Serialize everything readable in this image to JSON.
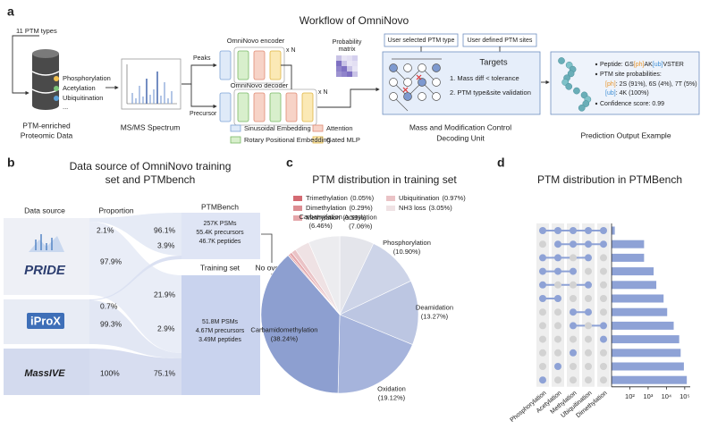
{
  "panel_labels": [
    "a",
    "b",
    "c",
    "d"
  ],
  "panel_a": {
    "title": "Workflow of OmniNovo",
    "ptm_types": "11 PTM types",
    "ptm_list": [
      "Phosphorylation",
      "Acetylation",
      "Ubiquitination",
      "..."
    ],
    "data_label": [
      "PTM-enriched",
      "Proteomic Data"
    ],
    "spectrum_label": "MS/MS Spectrum",
    "peaks": "Peaks",
    "precursor": "Precursor",
    "encoder": "OmniNovo encoder",
    "decoder": "OmniNovo decoder",
    "repeat": "x N",
    "probability_matrix": [
      "Probability",
      "matrix"
    ],
    "legend": [
      "Sinusoidal Embedding",
      "Attention",
      "Rotary Positional Embedding",
      "Gated MLP"
    ],
    "user_inputs": [
      "User selected PTM type",
      "User defined PTM sites"
    ],
    "targets": "Targets",
    "target_rules": [
      "1. Mass diff < tolerance",
      "2. PTM type&site validation"
    ],
    "unit_label": [
      "Mass and Modification Control",
      "Decoding Unit"
    ],
    "output": {
      "peptide": [
        "Peptide: GS",
        "[ph]",
        "AK",
        "[ub]",
        "VSTER"
      ],
      "site_title": "PTM site probabilities:",
      "ph_line": [
        "[ph]",
        ": 2S (91%), 6S (4%), 7T (5%)"
      ],
      "ub_line": [
        "[ub]",
        ": 4K (100%)"
      ],
      "confidence": "Confidence score: 0.99"
    },
    "output_label": "Prediction Output Example"
  },
  "panel_b": {
    "title": [
      "Data source of OmniNovo training",
      "set  and PTMbench"
    ],
    "headers": [
      "Data source",
      "Proportion",
      "PTMBench"
    ],
    "sources": [
      "PRIDE",
      "iProX",
      "MassIVE"
    ],
    "source_shares": [
      [
        "2.1%",
        "97.9%"
      ],
      [
        "0.7%",
        "99.3%"
      ],
      [
        "100%"
      ]
    ],
    "bench_shares": [
      "96.1%",
      "3.9%"
    ],
    "training_shares": [
      "21.9%",
      "2.9%",
      "75.1%"
    ],
    "training_set": "Training set",
    "no_overlap": "No overlap",
    "ptmbench_stats": [
      "257K PSMs",
      "55.4K precursors",
      "46.7K peptides"
    ],
    "training_stats": [
      "51.8M PSMs",
      "4.67M precursors",
      "3.49M peptides"
    ]
  },
  "chart_data": [
    {
      "type": "pie",
      "title": "PTM distribution in training set",
      "categories": [
        "Acetylation",
        "Phosphorylation",
        "Deamidation",
        "Oxidation",
        "Carbamidomethylation",
        "Trimethylation",
        "Dimethylation",
        "Methylation",
        "Ubiquitination",
        "NH3 loss",
        "Carbamylation"
      ],
      "values": [
        7.06,
        10.9,
        13.27,
        19.12,
        38.24,
        0.05,
        0.29,
        0.59,
        0.97,
        3.05,
        6.46
      ],
      "value_labels": [
        "(7.06%)",
        "(10.90%)",
        "(13.27%)",
        "(19.12%)",
        "(38.24%)",
        "(0.05%)",
        "(0.29%)",
        "(0.59%)",
        "(0.97%)",
        "(3.05%)",
        "(6.46%)"
      ],
      "colors": [
        "#e4e5eb",
        "#cdd4e8",
        "#bcc6e2",
        "#a6b4dc",
        "#8d9fd0",
        "#d46a72",
        "#dc8d92",
        "#e5a6aa",
        "#eac3c6",
        "#efe2e4",
        "#ececef"
      ]
    },
    {
      "type": "upset",
      "title": "PTM distribution in PTMBench",
      "set_names": [
        "Phosphorylation",
        "Acetylation",
        "Methylation",
        "Ubiquitination",
        "Dimethylation"
      ],
      "sets": [
        [
          1,
          1,
          1,
          1,
          1
        ],
        [
          0,
          1,
          1,
          1,
          1
        ],
        [
          1,
          1,
          0,
          1,
          0
        ],
        [
          1,
          1,
          1,
          0,
          0
        ],
        [
          1,
          0,
          0,
          1,
          0
        ],
        [
          1,
          1,
          0,
          0,
          0
        ],
        [
          0,
          0,
          1,
          1,
          0
        ],
        [
          0,
          0,
          1,
          0,
          1
        ],
        [
          0,
          0,
          0,
          0,
          1
        ],
        [
          0,
          0,
          1,
          0,
          0
        ],
        [
          0,
          1,
          0,
          0,
          0
        ],
        [
          1,
          0,
          0,
          0,
          0
        ]
      ],
      "values": [
        15,
        600,
        600,
        2000,
        2800,
        7000,
        11000,
        25000,
        50000,
        60000,
        90000,
        130000
      ],
      "xscale": "log",
      "xlim": [
        10,
        200000
      ],
      "xticks": [
        {
          "value": 100,
          "label": "10²"
        },
        {
          "value": 1000,
          "label": "10³"
        },
        {
          "value": 10000,
          "label": "10⁴"
        },
        {
          "value": 100000,
          "label": "10⁵"
        }
      ],
      "color": "#8ea2d6"
    }
  ]
}
